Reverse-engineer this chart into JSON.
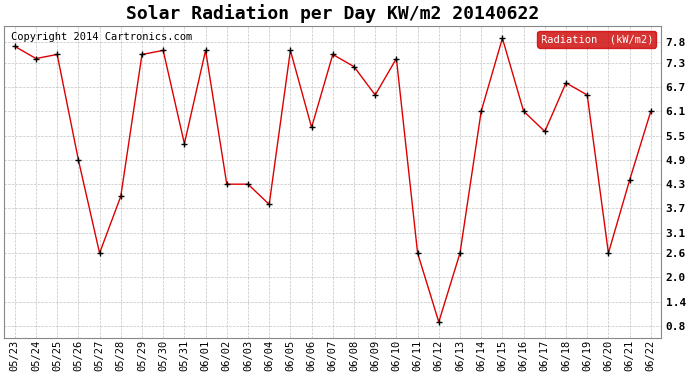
{
  "title": "Solar Radiation per Day KW/m2 20140622",
  "copyright": "Copyright 2014 Cartronics.com",
  "legend_label": "Radiation  (kW/m2)",
  "dates": [
    "05/23",
    "05/24",
    "05/25",
    "05/26",
    "05/27",
    "05/28",
    "05/29",
    "05/30",
    "05/31",
    "06/01",
    "06/02",
    "06/03",
    "06/04",
    "06/05",
    "06/06",
    "06/07",
    "06/08",
    "06/09",
    "06/10",
    "06/11",
    "06/12",
    "06/13",
    "06/14",
    "06/15",
    "06/16",
    "06/17",
    "06/18",
    "06/19",
    "06/20",
    "06/21",
    "06/22"
  ],
  "values": [
    7.7,
    7.4,
    7.5,
    4.9,
    2.6,
    4.0,
    7.5,
    7.6,
    5.3,
    7.6,
    4.3,
    4.3,
    3.8,
    7.6,
    5.7,
    7.5,
    7.2,
    6.5,
    7.4,
    2.6,
    0.9,
    2.6,
    6.1,
    7.9,
    6.1,
    5.6,
    6.8,
    6.5,
    2.6,
    4.4,
    6.1
  ],
  "ylim": [
    0.5,
    8.2
  ],
  "yticks": [
    0.8,
    1.4,
    2.0,
    2.6,
    3.1,
    3.7,
    4.3,
    4.9,
    5.5,
    6.1,
    6.7,
    7.3,
    7.8
  ],
  "line_color": "#dd0000",
  "marker_color": "#000000",
  "bg_color": "#ffffff",
  "plot_bg_color": "#ffffff",
  "grid_color": "#aaaaaa",
  "title_fontsize": 13,
  "copyright_fontsize": 7.5,
  "tick_fontsize": 7.5,
  "legend_bg": "#cc0000",
  "legend_text_color": "#ffffff"
}
